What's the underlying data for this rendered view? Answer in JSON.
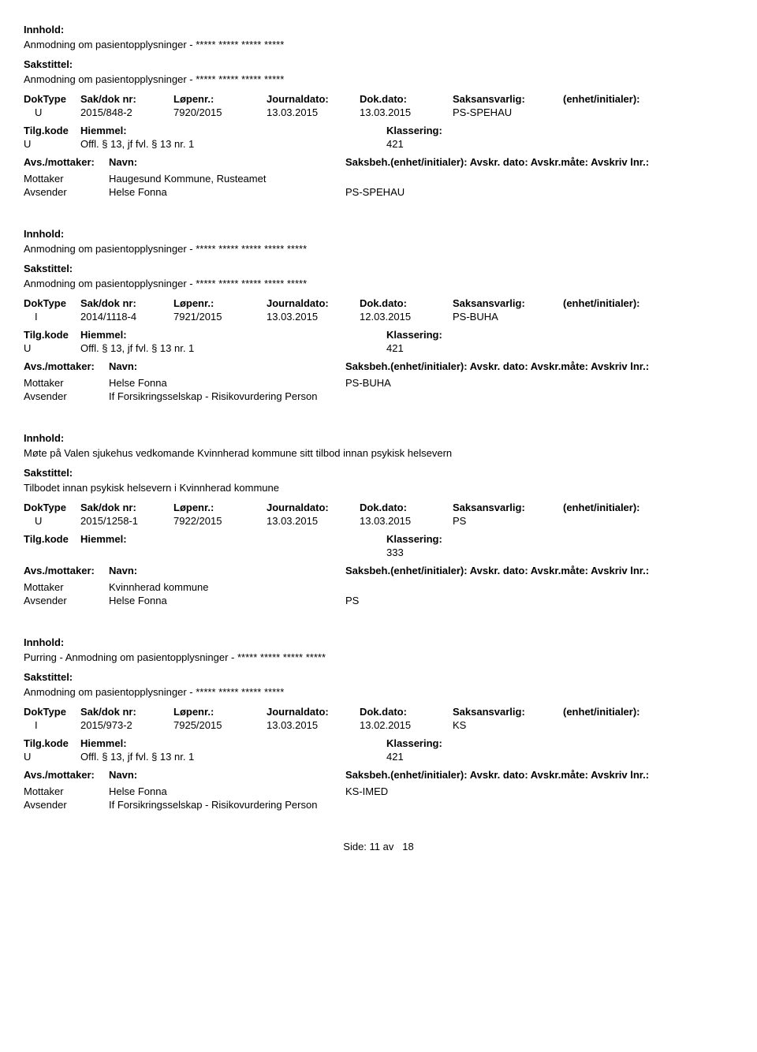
{
  "labels": {
    "innhold": "Innhold:",
    "sakstittel": "Sakstittel:",
    "doktype": "DokType",
    "sakdok": "Sak/dok nr:",
    "lopenr": "Løpenr.:",
    "journaldato": "Journaldato:",
    "dokdato": "Dok.dato:",
    "saksansvarlig": "Saksansvarlig:",
    "enhet": "(enhet/initialer):",
    "tilgkode": "Tilg.kode",
    "hjemmel": "Hiemmel:",
    "klassering": "Klassering:",
    "avsmottaker": "Avs./mottaker:",
    "navn": "Navn:",
    "saksbeh": "Saksbeh.(enhet/initialer): Avskr. dato:  Avskr.måte:  Avskriv lnr.:",
    "mottaker": "Mottaker",
    "avsender": "Avsender",
    "side": "Side:",
    "av": "av"
  },
  "col_widths": {
    "doktype": 72,
    "sakdok": 118,
    "lopenr": 118,
    "journaldato": 118,
    "dokdato": 118,
    "saksansvarlig": 140,
    "enhet": 150,
    "tilgkode": 72,
    "hjemmel": 388,
    "klassering": 300
  },
  "records": [
    {
      "innhold": "Anmodning om pasientopplysninger - ***** ***** ***** *****",
      "sakstittel": "Anmodning om pasientopplysninger - ***** ***** ***** *****",
      "doktype": "U",
      "sakdok": "2015/848-2",
      "lopenr": "7920/2015",
      "journaldato": "13.03.2015",
      "dokdato": "13.03.2015",
      "saksansvarlig": "PS-SPEHAU",
      "tilgkode": "U",
      "hjemmel": "Offl. § 13, jf fvl. § 13 nr. 1",
      "klassering": "421",
      "parties": [
        {
          "role": "Mottaker",
          "name": "Haugesund Kommune, Rusteamet",
          "code": ""
        },
        {
          "role": "Avsender",
          "name": "Helse Fonna",
          "code": "PS-SPEHAU"
        }
      ]
    },
    {
      "innhold": "Anmodning om pasientopplysninger - ***** ***** ***** ***** *****",
      "sakstittel": "Anmodning om pasientopplysninger - ***** ***** ***** ***** *****",
      "doktype": "I",
      "sakdok": "2014/1118-4",
      "lopenr": "7921/2015",
      "journaldato": "13.03.2015",
      "dokdato": "12.03.2015",
      "saksansvarlig": "PS-BUHA",
      "tilgkode": "U",
      "hjemmel": "Offl. § 13, jf fvl. § 13 nr. 1",
      "klassering": "421",
      "parties": [
        {
          "role": "Mottaker",
          "name": "Helse Fonna",
          "code": "PS-BUHA"
        },
        {
          "role": "Avsender",
          "name": "If Forsikringsselskap - Risikovurdering Person",
          "code": ""
        }
      ]
    },
    {
      "innhold": "Møte på Valen sjukehus vedkomande Kvinnherad kommune sitt tilbod innan psykisk helsevern",
      "sakstittel": "Tilbodet innan psykisk helsevern i Kvinnherad kommune",
      "doktype": "U",
      "sakdok": "2015/1258-1",
      "lopenr": "7922/2015",
      "journaldato": "13.03.2015",
      "dokdato": "13.03.2015",
      "saksansvarlig": "PS",
      "tilgkode": "",
      "hjemmel": "",
      "klassering": "333",
      "parties": [
        {
          "role": "Mottaker",
          "name": "Kvinnherad kommune",
          "code": ""
        },
        {
          "role": "Avsender",
          "name": "Helse Fonna",
          "code": "PS"
        }
      ]
    },
    {
      "innhold": "Purring - Anmodning om pasientopplysninger - ***** ***** ***** *****",
      "sakstittel": "Anmodning om pasientopplysninger - ***** ***** ***** *****",
      "doktype": "I",
      "sakdok": "2015/973-2",
      "lopenr": "7925/2015",
      "journaldato": "13.03.2015",
      "dokdato": "13.02.2015",
      "saksansvarlig": "KS",
      "tilgkode": "U",
      "hjemmel": "Offl. § 13, jf fvl. § 13 nr. 1",
      "klassering": "421",
      "parties": [
        {
          "role": "Mottaker",
          "name": "Helse Fonna",
          "code": "KS-IMED"
        },
        {
          "role": "Avsender",
          "name": "If Forsikringsselskap - Risikovurdering Person",
          "code": ""
        }
      ]
    }
  ],
  "footer": {
    "page": "11",
    "total": "18"
  }
}
